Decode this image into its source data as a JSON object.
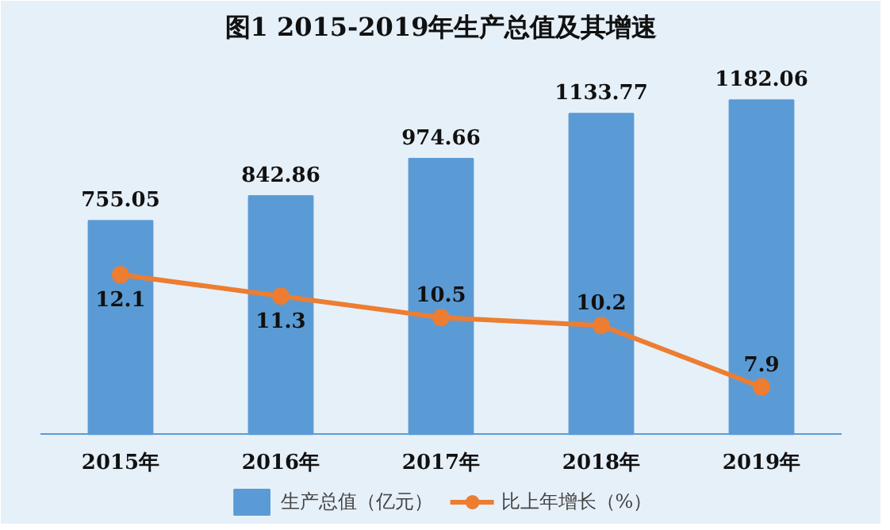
{
  "chart_data": {
    "type": "bar",
    "title": "图1 2015-2019年生产总值及其增速",
    "categories": [
      "2015年",
      "2016年",
      "2017年",
      "2018年",
      "2019年"
    ],
    "series": [
      {
        "name": "生产总值（亿元）",
        "color": "#5b9bd5",
        "values": [
          755.05,
          842.86,
          974.66,
          1133.77,
          1182.06
        ]
      },
      {
        "name": "比上年增长（%）",
        "type": "line",
        "axis": "y2",
        "color": "#ed7d31",
        "values": [
          12.1,
          11.3,
          10.5,
          10.2,
          7.9
        ]
      }
    ],
    "data_labels": true,
    "legend": "bottom",
    "marker": "circle",
    "line_style": "solid",
    "grid": false
  }
}
